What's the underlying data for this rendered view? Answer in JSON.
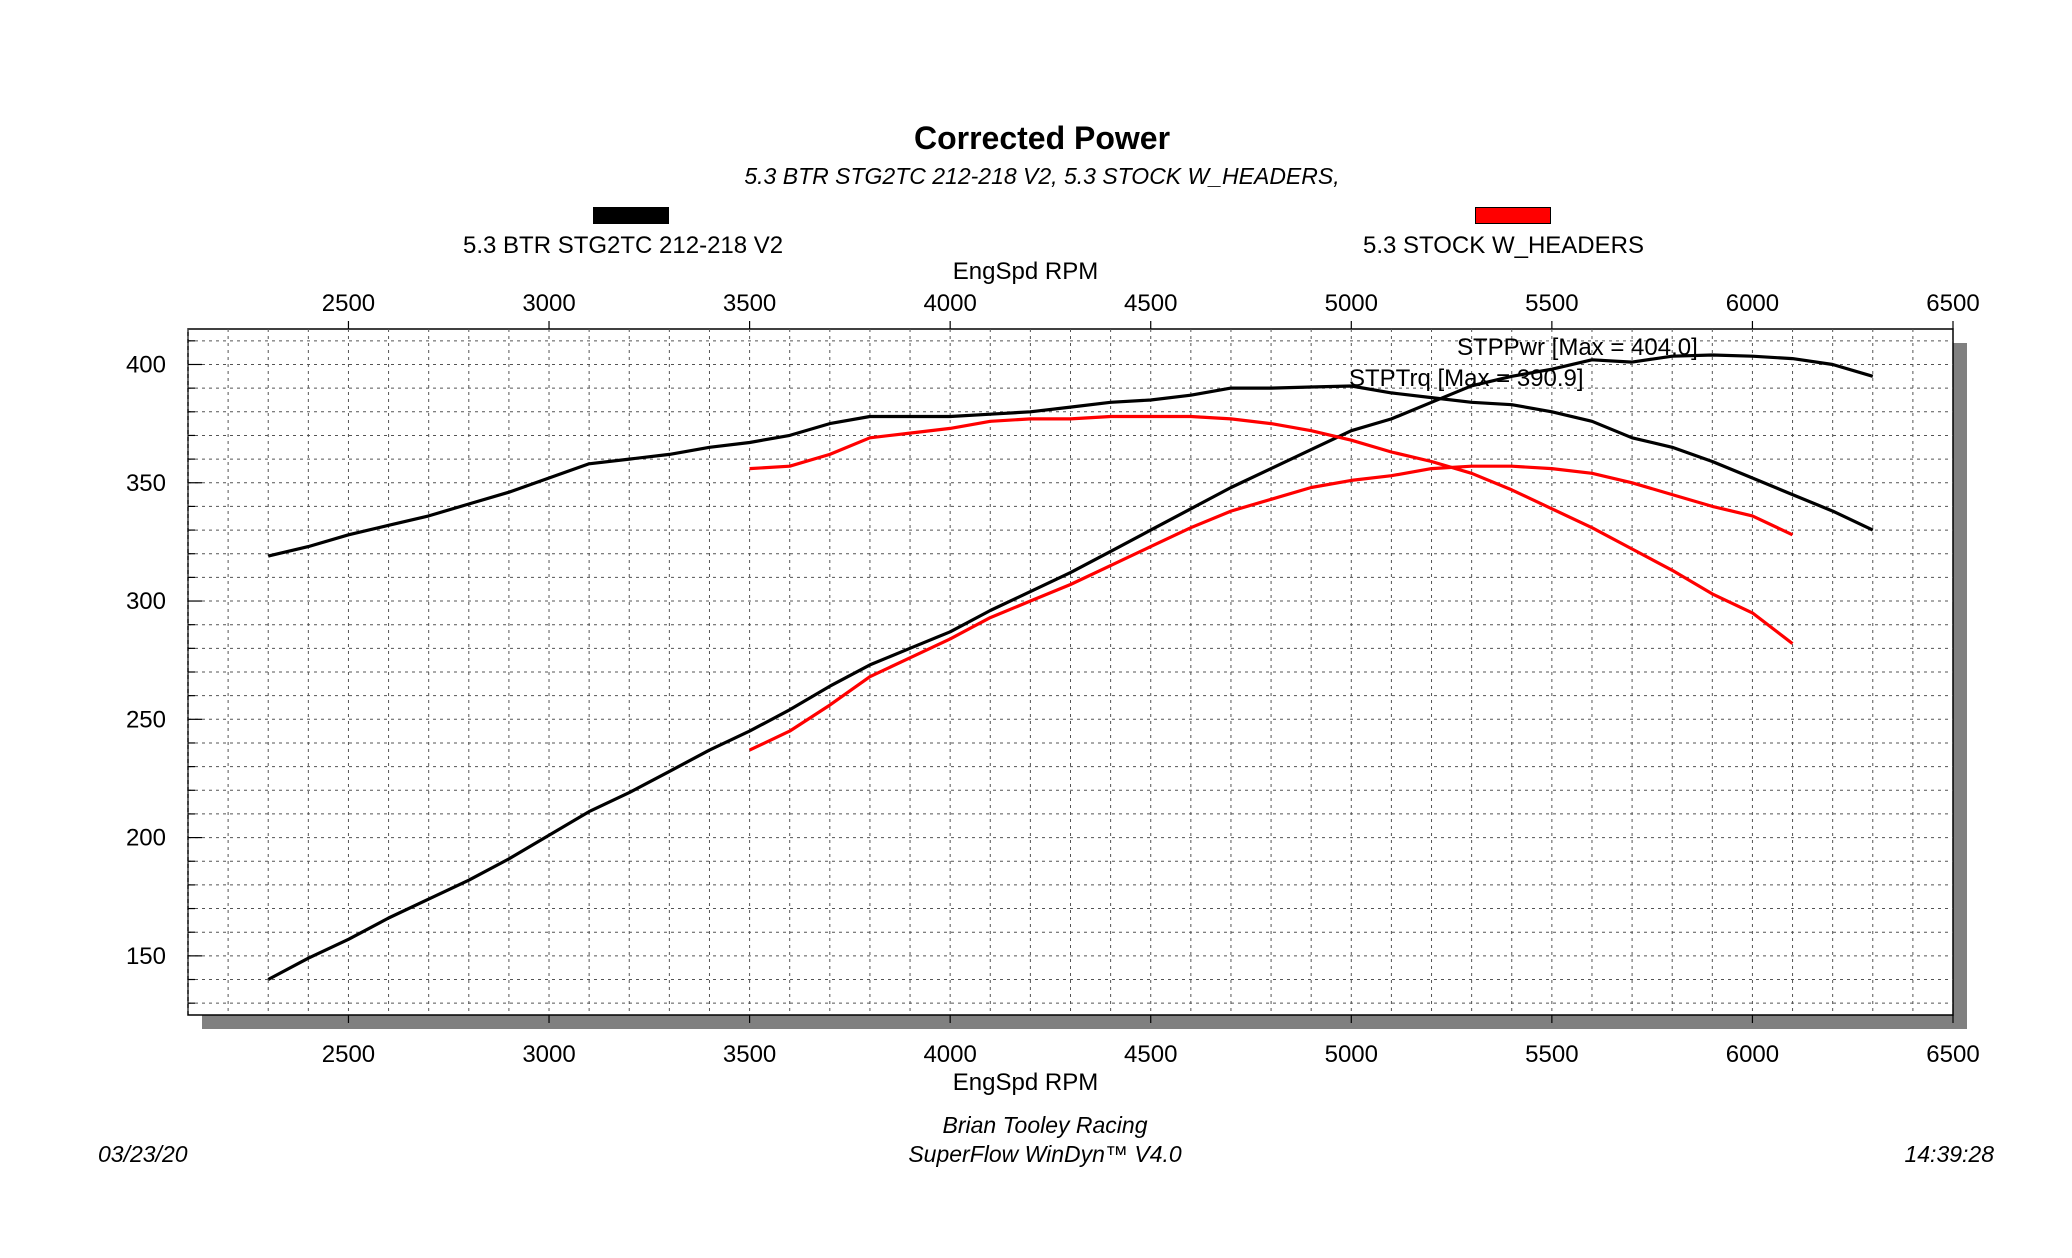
{
  "header": {
    "title": "Corrected Power",
    "subtitle": "5.3 BTR STG2TC 212-218 V2, 5.3 STOCK W_HEADERS,"
  },
  "legend": [
    {
      "label": "5.3 BTR STG2TC 212-218 V2",
      "color": "#000000"
    },
    {
      "label": "5.3 STOCK W_HEADERS",
      "color": "#ff0000"
    }
  ],
  "footer": {
    "date": "03/23/20",
    "time": "14:39:28",
    "line1": "Brian Tooley Racing",
    "line2": "SuperFlow WinDyn™ V4.0"
  },
  "chart_data": {
    "type": "line",
    "title": "Corrected Power",
    "xlabel": "EngSpd RPM",
    "ylabel": "",
    "xlim": [
      2100,
      6500
    ],
    "ylim": [
      125,
      415
    ],
    "x_ticks": [
      2500,
      3000,
      3500,
      4000,
      4500,
      5000,
      5500,
      6000,
      6500
    ],
    "y_ticks": [
      150,
      200,
      250,
      300,
      350,
      400
    ],
    "grid": true,
    "annotations": [
      {
        "text": "STPPwr [Max = 404.0]",
        "x": 5900,
        "y": 404.0
      },
      {
        "text": "STPTrq [Max = 390.9]",
        "x": 5000,
        "y": 390.9
      }
    ],
    "series": [
      {
        "name": "5.3 BTR STG2TC 212-218 V2",
        "color": "#000000",
        "measure": "torque",
        "x": [
          2300,
          2400,
          2500,
          2600,
          2700,
          2800,
          2900,
          3000,
          3100,
          3200,
          3300,
          3400,
          3500,
          3600,
          3700,
          3800,
          3900,
          4000,
          4100,
          4200,
          4300,
          4400,
          4500,
          4600,
          4700,
          4800,
          4900,
          5000,
          5100,
          5200,
          5300,
          5400,
          5500,
          5600,
          5700,
          5800,
          5900,
          6000,
          6100,
          6200,
          6300
        ],
        "y": [
          319,
          323,
          328,
          332,
          336,
          341,
          346,
          352,
          358,
          360,
          362,
          365,
          367,
          370,
          375,
          378,
          378,
          378,
          379,
          380,
          382,
          384,
          385,
          387,
          390,
          390,
          390.5,
          390.9,
          388,
          386,
          384,
          383,
          380,
          376,
          369,
          365,
          359,
          352,
          345,
          338,
          330
        ]
      },
      {
        "name": "5.3 BTR STG2TC 212-218 V2",
        "color": "#000000",
        "measure": "power",
        "x": [
          2300,
          2400,
          2500,
          2600,
          2700,
          2800,
          2900,
          3000,
          3100,
          3200,
          3300,
          3400,
          3500,
          3600,
          3700,
          3800,
          3900,
          4000,
          4100,
          4200,
          4300,
          4400,
          4500,
          4600,
          4700,
          4800,
          4900,
          5000,
          5100,
          5200,
          5300,
          5400,
          5500,
          5600,
          5700,
          5800,
          5900,
          6000,
          6100,
          6200,
          6300
        ],
        "y": [
          140,
          149,
          157,
          166,
          174,
          182,
          191,
          201,
          211,
          219,
          228,
          237,
          245,
          254,
          264,
          273,
          280,
          287,
          296,
          304,
          312,
          321,
          330,
          339,
          348,
          356,
          364,
          372,
          377,
          384,
          391,
          395,
          398,
          402,
          401,
          403.5,
          404.0,
          403.5,
          402.5,
          400,
          395
        ]
      },
      {
        "name": "5.3 STOCK W_HEADERS",
        "color": "#ff0000",
        "measure": "torque",
        "x": [
          3500,
          3600,
          3700,
          3800,
          3900,
          4000,
          4100,
          4200,
          4300,
          4400,
          4500,
          4600,
          4700,
          4800,
          4900,
          5000,
          5100,
          5200,
          5300,
          5400,
          5500,
          5600,
          5700,
          5800,
          5900,
          6000,
          6100
        ],
        "y": [
          356,
          357,
          362,
          369,
          371,
          373,
          376,
          377,
          377,
          378,
          378,
          378,
          377,
          375,
          372,
          368,
          363,
          359,
          354,
          347,
          339,
          331,
          322,
          313,
          303,
          295,
          282
        ]
      },
      {
        "name": "5.3 STOCK W_HEADERS",
        "color": "#ff0000",
        "measure": "power",
        "x": [
          3500,
          3600,
          3700,
          3800,
          3900,
          4000,
          4100,
          4200,
          4300,
          4400,
          4500,
          4600,
          4700,
          4800,
          4900,
          5000,
          5100,
          5200,
          5300,
          5400,
          5500,
          5600,
          5700,
          5800,
          5900,
          6000,
          6100
        ],
        "y": [
          237,
          245,
          256,
          268,
          276,
          284,
          293,
          300,
          307,
          315,
          323,
          331,
          338,
          343,
          348,
          351,
          353,
          356,
          357,
          357,
          356,
          354,
          350,
          345,
          340,
          336,
          328
        ]
      }
    ]
  }
}
